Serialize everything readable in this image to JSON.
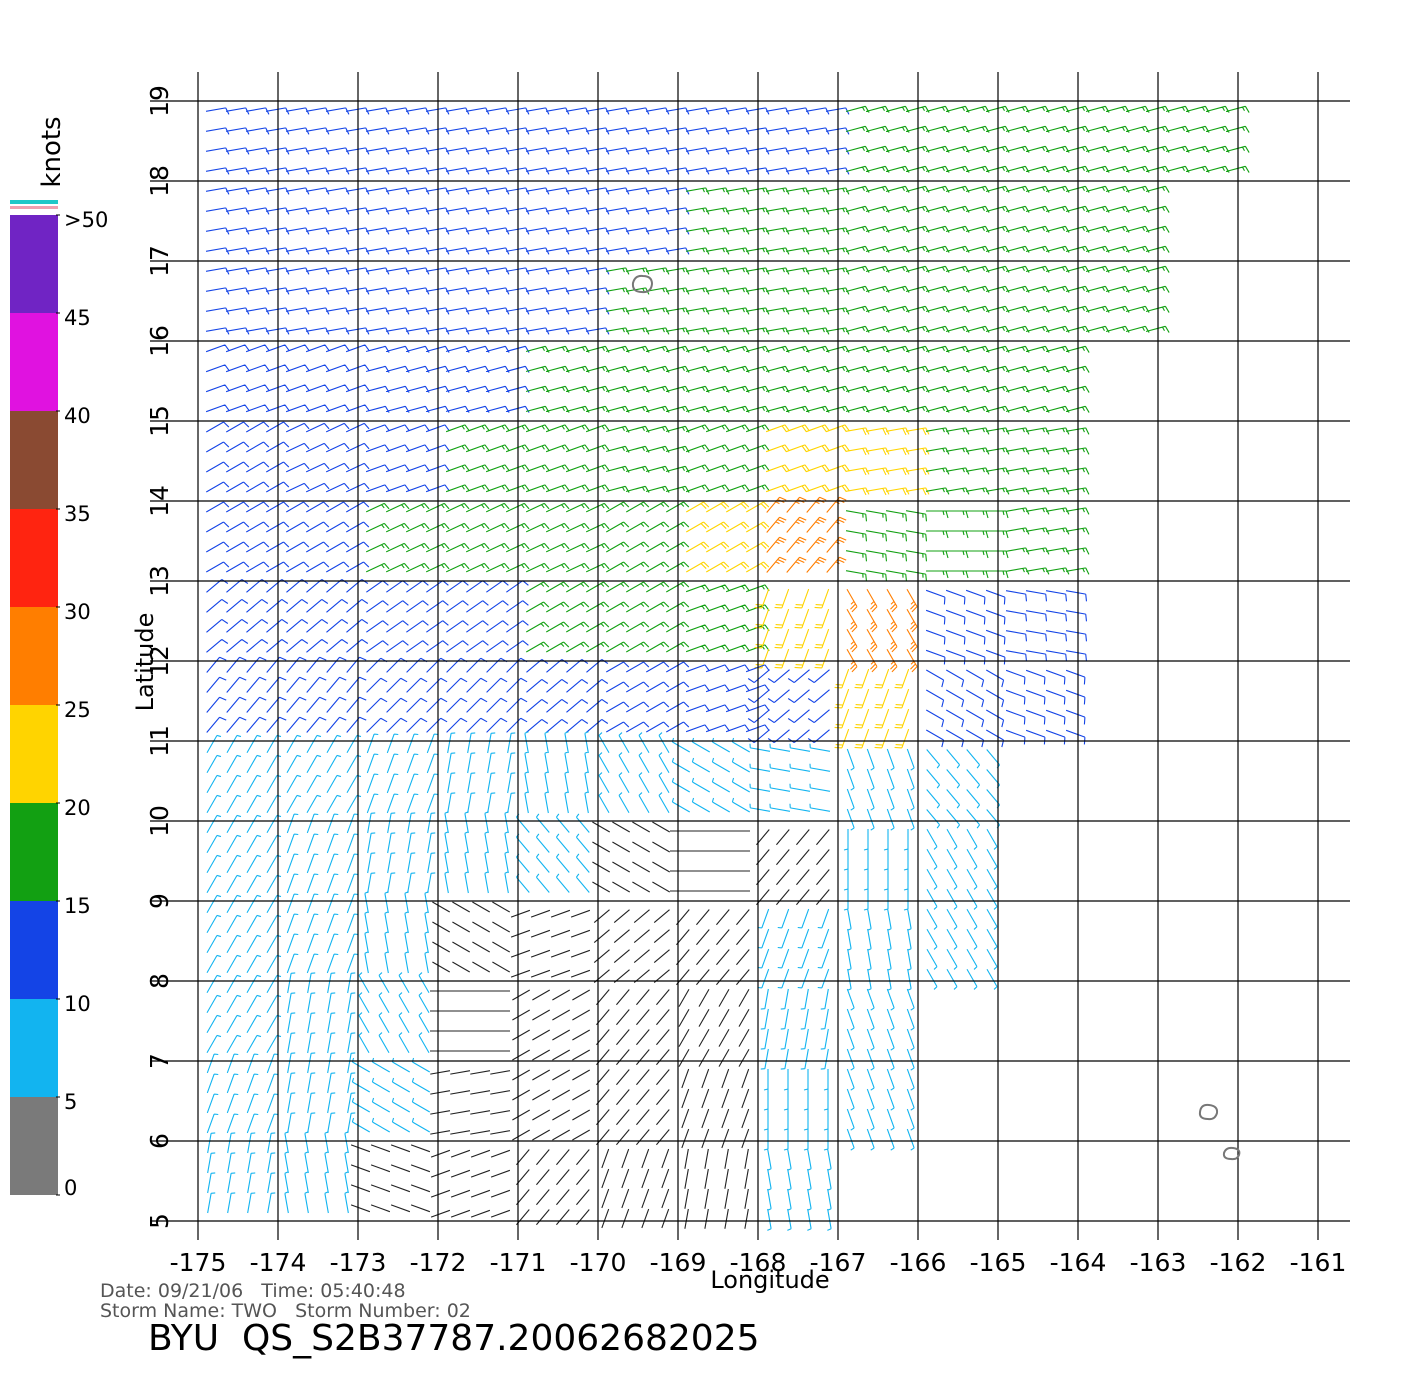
{
  "chart_data": {
    "type": "wind_barbs",
    "xlabel": "Longitude",
    "ylabel": "Latitude",
    "xlim": [
      -175,
      -161
    ],
    "ylim": [
      5,
      19
    ],
    "xticks": [
      -175,
      -174,
      -173,
      -172,
      -171,
      -170,
      -169,
      -168,
      -167,
      -166,
      -165,
      -164,
      -163,
      -162,
      -161
    ],
    "yticks": [
      5,
      6,
      7,
      8,
      9,
      10,
      11,
      12,
      13,
      14,
      15,
      16,
      17,
      18,
      19
    ],
    "grid": true,
    "colorbar": {
      "label": "knots",
      "lim": [
        0,
        50
      ],
      "ticks": [
        0,
        5,
        10,
        15,
        20,
        25,
        30,
        35,
        40,
        45,
        {
          "value": 50,
          "label": ">50"
        }
      ],
      "colors": [
        "#7a7a7a",
        "#12b4f0",
        "#1444e6",
        "#12a012",
        "#ffd400",
        "#ff7e00",
        "#ff2410",
        "#8a4a32",
        "#e012e0",
        "#7024c4"
      ]
    },
    "wind": {
      "speed": [
        [
          12,
          12,
          12,
          12,
          12,
          13,
          13,
          14,
          15,
          17,
          17,
          17,
          17,
          null
        ],
        [
          12,
          12,
          12,
          12,
          13,
          14,
          16,
          17,
          17,
          17,
          17,
          17,
          null,
          null
        ],
        [
          12,
          12,
          12,
          12,
          13,
          15,
          16,
          17,
          17,
          17,
          17,
          17,
          null,
          null
        ],
        [
          12,
          12,
          13,
          14,
          15,
          16,
          17,
          18,
          19,
          17,
          17,
          null,
          null,
          null
        ],
        [
          12,
          13,
          14,
          15,
          16,
          17,
          19,
          21,
          21,
          18,
          17,
          null,
          null,
          null
        ],
        [
          13,
          14,
          16,
          16,
          17,
          18,
          22,
          26,
          19,
          17,
          15,
          null,
          null,
          null
        ],
        [
          12,
          13,
          13,
          14,
          16,
          17,
          18,
          24,
          27,
          14,
          13,
          null,
          null,
          null
        ],
        [
          11,
          11,
          11,
          12,
          12,
          11,
          11,
          12,
          21,
          11,
          11,
          null,
          null,
          null
        ],
        [
          9,
          9,
          8,
          8,
          7,
          6,
          5,
          6,
          7,
          7,
          null,
          null,
          null,
          null
        ],
        [
          8,
          8,
          7,
          6,
          5,
          4,
          3,
          4,
          6,
          7,
          null,
          null,
          null,
          null
        ],
        [
          7,
          6,
          5,
          4,
          3,
          3,
          4,
          6,
          7,
          6,
          null,
          null,
          null,
          null
        ],
        [
          7,
          6,
          5,
          3,
          3,
          3,
          4,
          6,
          7,
          null,
          null,
          null,
          null,
          null
        ],
        [
          7,
          6,
          5,
          3,
          3,
          4,
          3,
          6,
          7,
          null,
          null,
          null,
          null,
          null
        ],
        [
          7,
          6,
          4,
          3,
          3,
          4,
          4,
          6,
          null,
          null,
          null,
          null,
          null,
          null
        ]
      ],
      "direction": [
        [
          80,
          80,
          80,
          80,
          80,
          80,
          80,
          80,
          75,
          75,
          75,
          75,
          75,
          null
        ],
        [
          80,
          80,
          80,
          80,
          80,
          80,
          80,
          80,
          75,
          75,
          75,
          75,
          null,
          null
        ],
        [
          80,
          80,
          80,
          80,
          80,
          80,
          80,
          80,
          75,
          75,
          75,
          75,
          null,
          null
        ],
        [
          70,
          70,
          75,
          75,
          75,
          75,
          75,
          75,
          75,
          75,
          75,
          null,
          null,
          null
        ],
        [
          60,
          65,
          70,
          70,
          70,
          75,
          70,
          70,
          80,
          80,
          80,
          null,
          null,
          null
        ],
        [
          60,
          60,
          65,
          65,
          65,
          60,
          60,
          40,
          100,
          90,
          80,
          null,
          null,
          null
        ],
        [
          50,
          50,
          55,
          55,
          60,
          60,
          70,
          200,
          150,
          110,
          100,
          null,
          null,
          null
        ],
        [
          40,
          40,
          45,
          45,
          50,
          60,
          70,
          230,
          200,
          120,
          110,
          null,
          null,
          null
        ],
        [
          30,
          30,
          20,
          10,
          350,
          330,
          300,
          280,
          160,
          140,
          null,
          null,
          null,
          null
        ],
        [
          30,
          20,
          10,
          350,
          320,
          300,
          270,
          220,
          180,
          150,
          null,
          null,
          null,
          null
        ],
        [
          30,
          20,
          350,
          300,
          250,
          230,
          220,
          200,
          170,
          150,
          null,
          null,
          null,
          null
        ],
        [
          30,
          10,
          330,
          270,
          240,
          220,
          210,
          190,
          160,
          null,
          null,
          null,
          null,
          null
        ],
        [
          20,
          10,
          300,
          260,
          240,
          220,
          200,
          180,
          160,
          null,
          null,
          null,
          null,
          null
        ],
        [
          10,
          350,
          290,
          250,
          220,
          200,
          190,
          170,
          null,
          null,
          null,
          null,
          null,
          null
        ]
      ]
    },
    "footer": {
      "date_line": "Date: 09/21/06   Time: 05:40:48",
      "storm_line": "Storm Name: TWO   Storm Number: 02",
      "file_line": "BYU  QS_S2B37787.20062682025"
    }
  }
}
